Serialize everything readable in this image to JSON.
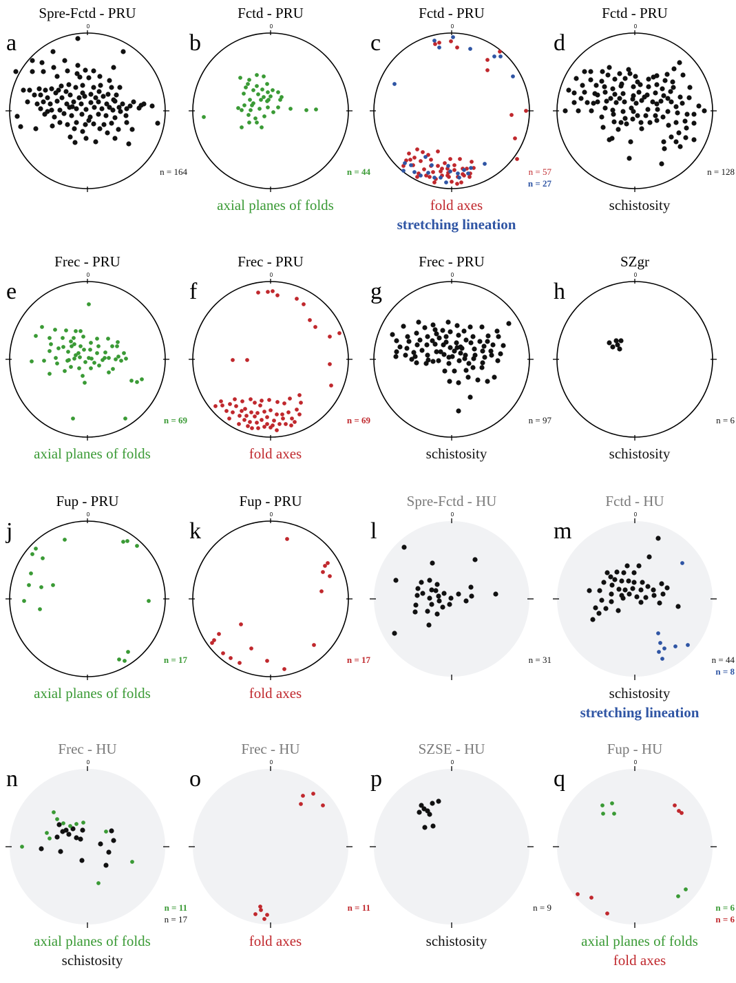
{
  "north_tick_label": "0",
  "colors": {
    "black": "#111111",
    "green": "#3a9a35",
    "red": "#c0282d",
    "blue": "#2f55a4",
    "gray_title": "#7a7a7a",
    "hu_fill": "#f1f2f4"
  },
  "panels": [
    {
      "letter": "a",
      "title": "Spre-Fctd - PRU",
      "unit": "PRU",
      "counts": [
        {
          "text": "n = 164",
          "color": "black",
          "bold": false
        }
      ],
      "captions": [
        {
          "text": "",
          "color": "black"
        }
      ]
    },
    {
      "letter": "b",
      "title": "Fctd - PRU",
      "unit": "PRU",
      "counts": [
        {
          "text": "n = 44",
          "color": "green",
          "bold": true
        }
      ],
      "captions": [
        {
          "text": "axial planes of folds",
          "color": "green"
        }
      ]
    },
    {
      "letter": "c",
      "title": "Fctd - PRU",
      "unit": "PRU",
      "counts": [
        {
          "text": "n = 57",
          "color": "red",
          "bold": false
        },
        {
          "text": "n = 27",
          "color": "blue",
          "bold": true
        }
      ],
      "captions": [
        {
          "text": "fold axes",
          "color": "red"
        },
        {
          "text": "stretching lineation",
          "color": "blue"
        }
      ]
    },
    {
      "letter": "d",
      "title": "Fctd - PRU",
      "unit": "PRU",
      "counts": [
        {
          "text": "n = 128",
          "color": "black",
          "bold": false
        }
      ],
      "captions": [
        {
          "text": "schistosity",
          "color": "black"
        }
      ]
    },
    {
      "letter": "e",
      "title": "Frec - PRU",
      "unit": "PRU",
      "counts": [
        {
          "text": "n = 69",
          "color": "green",
          "bold": true
        }
      ],
      "captions": [
        {
          "text": "axial planes of folds",
          "color": "green"
        }
      ]
    },
    {
      "letter": "f",
      "title": "Frec - PRU",
      "unit": "PRU",
      "counts": [
        {
          "text": "n = 69",
          "color": "red",
          "bold": true
        }
      ],
      "captions": [
        {
          "text": "fold axes",
          "color": "red"
        }
      ]
    },
    {
      "letter": "g",
      "title": "Frec - PRU",
      "unit": "PRU",
      "counts": [
        {
          "text": "n = 97",
          "color": "black",
          "bold": false
        }
      ],
      "captions": [
        {
          "text": "schistosity",
          "color": "black"
        }
      ]
    },
    {
      "letter": "h",
      "title": "SZgr",
      "unit": "PRU",
      "counts": [
        {
          "text": "n = 6",
          "color": "black",
          "bold": false
        }
      ],
      "captions": [
        {
          "text": "schistosity",
          "color": "black"
        }
      ]
    },
    {
      "letter": "j",
      "title": "Fup - PRU",
      "unit": "PRU",
      "counts": [
        {
          "text": "n = 17",
          "color": "green",
          "bold": true
        }
      ],
      "captions": [
        {
          "text": "axial planes of folds",
          "color": "green"
        }
      ]
    },
    {
      "letter": "k",
      "title": "Fup - PRU",
      "unit": "PRU",
      "counts": [
        {
          "text": "n = 17",
          "color": "red",
          "bold": true
        }
      ],
      "captions": [
        {
          "text": "fold axes",
          "color": "red"
        }
      ]
    },
    {
      "letter": "l",
      "title": "Spre-Fctd - HU",
      "unit": "HU",
      "counts": [
        {
          "text": "n = 31",
          "color": "black",
          "bold": false
        }
      ],
      "captions": [
        {
          "text": "",
          "color": "black"
        }
      ]
    },
    {
      "letter": "m",
      "title": "Fctd - HU",
      "unit": "HU",
      "counts": [
        {
          "text": "n = 44",
          "color": "black",
          "bold": false
        },
        {
          "text": "n = 8",
          "color": "blue",
          "bold": true
        }
      ],
      "captions": [
        {
          "text": "schistosity",
          "color": "black"
        },
        {
          "text": "stretching lineation",
          "color": "blue"
        }
      ]
    },
    {
      "letter": "n",
      "title": "Frec - HU",
      "unit": "HU",
      "counts": [
        {
          "text": "n = 11",
          "color": "green",
          "bold": true
        },
        {
          "text": "n = 17",
          "color": "black",
          "bold": false
        }
      ],
      "captions": [
        {
          "text": "axial planes of folds",
          "color": "green"
        },
        {
          "text": "schistosity",
          "color": "black"
        }
      ]
    },
    {
      "letter": "o",
      "title": "Frec - HU",
      "unit": "HU",
      "counts": [
        {
          "text": "n = 11",
          "color": "red",
          "bold": true
        }
      ],
      "captions": [
        {
          "text": "fold axes",
          "color": "red"
        }
      ]
    },
    {
      "letter": "p",
      "title": "SZSE - HU",
      "unit": "HU",
      "counts": [
        {
          "text": "n = 9",
          "color": "black",
          "bold": false
        }
      ],
      "captions": [
        {
          "text": "schistosity",
          "color": "black"
        }
      ]
    },
    {
      "letter": "q",
      "title": "Fup - HU",
      "unit": "HU",
      "counts": [
        {
          "text": "n = 6",
          "color": "green",
          "bold": true
        },
        {
          "text": "n = 6",
          "color": "red",
          "bold": true
        }
      ],
      "captions": [
        {
          "text": "axial planes of folds",
          "color": "green"
        },
        {
          "text": "fold axes",
          "color": "red"
        }
      ]
    }
  ]
}
